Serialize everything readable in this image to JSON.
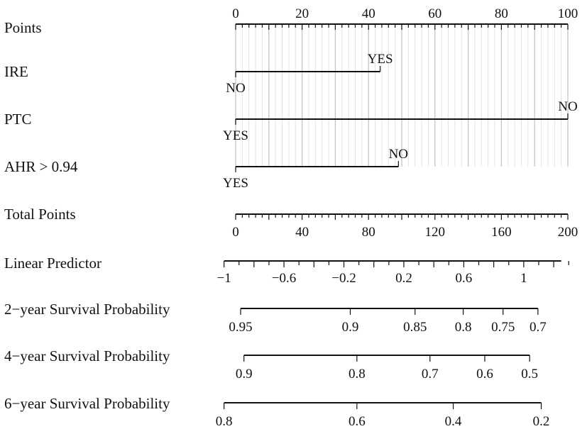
{
  "chart_data": {
    "type": "nomogram",
    "points_axis": {
      "label": "Points",
      "min": 0,
      "max": 100,
      "tick_labels": [
        "0",
        "20",
        "40",
        "60",
        "80",
        "100"
      ],
      "tick_values": [
        0,
        20,
        40,
        60,
        80,
        100
      ],
      "minor_step": 2,
      "grid": true
    },
    "variables": [
      {
        "label": "IRE",
        "levels": [
          {
            "name": "NO",
            "points": 0,
            "position": "below"
          },
          {
            "name": "YES",
            "points": 43.5,
            "position": "above"
          }
        ]
      },
      {
        "label": "PTC",
        "levels": [
          {
            "name": "YES",
            "points": 0,
            "position": "below"
          },
          {
            "name": "NO",
            "points": 100,
            "position": "above"
          }
        ]
      },
      {
        "label": "AHR > 0.94",
        "levels": [
          {
            "name": "YES",
            "points": 0,
            "position": "below"
          },
          {
            "name": "NO",
            "points": 49,
            "position": "above"
          }
        ]
      }
    ],
    "total_points": {
      "label": "Total Points",
      "min": 0,
      "max": 200,
      "tick_labels": [
        "0",
        "40",
        "80",
        "120",
        "160",
        "200"
      ],
      "tick_values": [
        0,
        40,
        80,
        120,
        160,
        200
      ],
      "minor_step": 4
    },
    "linear_predictor": {
      "label": "Linear Predictor",
      "total_points_at_min": -7,
      "value_at_min": -1.0,
      "total_points_at_max": 196,
      "value_at_max": 1.25,
      "tick_labels": [
        "−1",
        "−0.6",
        "−0.2",
        "0.2",
        "0.6",
        "1"
      ],
      "tick_values": [
        -1.0,
        -0.6,
        -0.2,
        0.2,
        0.6,
        1.0
      ],
      "minor_step": 0.1
    },
    "survival_scales": [
      {
        "label": "2−year Survival Probability",
        "line_start_total_points": 3,
        "line_end_total_points": 182,
        "ticks": [
          {
            "label": "0.95",
            "total_points": 3
          },
          {
            "label": "0.9",
            "total_points": 69
          },
          {
            "label": "0.85",
            "total_points": 108
          },
          {
            "label": "0.8",
            "total_points": 137
          },
          {
            "label": "0.75",
            "total_points": 161
          },
          {
            "label": "0.7",
            "total_points": 182
          }
        ]
      },
      {
        "label": "4−year Survival Probability",
        "line_start_total_points": 5,
        "line_end_total_points": 177,
        "ticks": [
          {
            "label": "0.9",
            "total_points": 5
          },
          {
            "label": "0.8",
            "total_points": 73
          },
          {
            "label": "0.7",
            "total_points": 117
          },
          {
            "label": "0.6",
            "total_points": 150
          },
          {
            "label": "0.5",
            "total_points": 177
          }
        ]
      },
      {
        "label": "6−year Survival Probability",
        "line_start_total_points": -7,
        "line_end_total_points": 184,
        "ticks": [
          {
            "label": "0.8",
            "total_points": -7
          },
          {
            "label": "0.6",
            "total_points": 73
          },
          {
            "label": "0.4",
            "total_points": 131
          },
          {
            "label": "0.2",
            "total_points": 184
          }
        ]
      }
    ]
  }
}
